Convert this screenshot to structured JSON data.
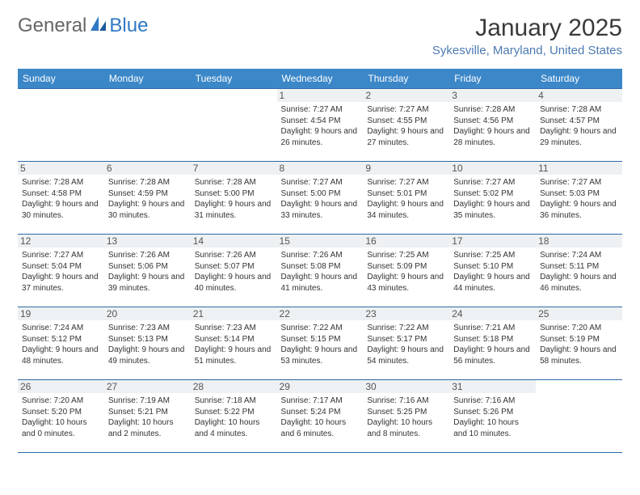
{
  "brand": {
    "general": "General",
    "blue": "Blue"
  },
  "header": {
    "month": "January 2025",
    "location": "Sykesville, Maryland, United States"
  },
  "dayNames": [
    "Sunday",
    "Monday",
    "Tuesday",
    "Wednesday",
    "Thursday",
    "Friday",
    "Saturday"
  ],
  "colors": {
    "header_bg": "#3b87c8",
    "header_text": "#ffffff",
    "accent": "#2f78c4",
    "rule": "#2d6aa8"
  },
  "weeks": [
    [
      {
        "num": "",
        "sunrise": "",
        "sunset": "",
        "daylight": ""
      },
      {
        "num": "",
        "sunrise": "",
        "sunset": "",
        "daylight": ""
      },
      {
        "num": "",
        "sunrise": "",
        "sunset": "",
        "daylight": ""
      },
      {
        "num": "1",
        "sunrise": "Sunrise: 7:27 AM",
        "sunset": "Sunset: 4:54 PM",
        "daylight": "Daylight: 9 hours and 26 minutes."
      },
      {
        "num": "2",
        "sunrise": "Sunrise: 7:27 AM",
        "sunset": "Sunset: 4:55 PM",
        "daylight": "Daylight: 9 hours and 27 minutes."
      },
      {
        "num": "3",
        "sunrise": "Sunrise: 7:28 AM",
        "sunset": "Sunset: 4:56 PM",
        "daylight": "Daylight: 9 hours and 28 minutes."
      },
      {
        "num": "4",
        "sunrise": "Sunrise: 7:28 AM",
        "sunset": "Sunset: 4:57 PM",
        "daylight": "Daylight: 9 hours and 29 minutes."
      }
    ],
    [
      {
        "num": "5",
        "sunrise": "Sunrise: 7:28 AM",
        "sunset": "Sunset: 4:58 PM",
        "daylight": "Daylight: 9 hours and 30 minutes."
      },
      {
        "num": "6",
        "sunrise": "Sunrise: 7:28 AM",
        "sunset": "Sunset: 4:59 PM",
        "daylight": "Daylight: 9 hours and 30 minutes."
      },
      {
        "num": "7",
        "sunrise": "Sunrise: 7:28 AM",
        "sunset": "Sunset: 5:00 PM",
        "daylight": "Daylight: 9 hours and 31 minutes."
      },
      {
        "num": "8",
        "sunrise": "Sunrise: 7:27 AM",
        "sunset": "Sunset: 5:00 PM",
        "daylight": "Daylight: 9 hours and 33 minutes."
      },
      {
        "num": "9",
        "sunrise": "Sunrise: 7:27 AM",
        "sunset": "Sunset: 5:01 PM",
        "daylight": "Daylight: 9 hours and 34 minutes."
      },
      {
        "num": "10",
        "sunrise": "Sunrise: 7:27 AM",
        "sunset": "Sunset: 5:02 PM",
        "daylight": "Daylight: 9 hours and 35 minutes."
      },
      {
        "num": "11",
        "sunrise": "Sunrise: 7:27 AM",
        "sunset": "Sunset: 5:03 PM",
        "daylight": "Daylight: 9 hours and 36 minutes."
      }
    ],
    [
      {
        "num": "12",
        "sunrise": "Sunrise: 7:27 AM",
        "sunset": "Sunset: 5:04 PM",
        "daylight": "Daylight: 9 hours and 37 minutes."
      },
      {
        "num": "13",
        "sunrise": "Sunrise: 7:26 AM",
        "sunset": "Sunset: 5:06 PM",
        "daylight": "Daylight: 9 hours and 39 minutes."
      },
      {
        "num": "14",
        "sunrise": "Sunrise: 7:26 AM",
        "sunset": "Sunset: 5:07 PM",
        "daylight": "Daylight: 9 hours and 40 minutes."
      },
      {
        "num": "15",
        "sunrise": "Sunrise: 7:26 AM",
        "sunset": "Sunset: 5:08 PM",
        "daylight": "Daylight: 9 hours and 41 minutes."
      },
      {
        "num": "16",
        "sunrise": "Sunrise: 7:25 AM",
        "sunset": "Sunset: 5:09 PM",
        "daylight": "Daylight: 9 hours and 43 minutes."
      },
      {
        "num": "17",
        "sunrise": "Sunrise: 7:25 AM",
        "sunset": "Sunset: 5:10 PM",
        "daylight": "Daylight: 9 hours and 44 minutes."
      },
      {
        "num": "18",
        "sunrise": "Sunrise: 7:24 AM",
        "sunset": "Sunset: 5:11 PM",
        "daylight": "Daylight: 9 hours and 46 minutes."
      }
    ],
    [
      {
        "num": "19",
        "sunrise": "Sunrise: 7:24 AM",
        "sunset": "Sunset: 5:12 PM",
        "daylight": "Daylight: 9 hours and 48 minutes."
      },
      {
        "num": "20",
        "sunrise": "Sunrise: 7:23 AM",
        "sunset": "Sunset: 5:13 PM",
        "daylight": "Daylight: 9 hours and 49 minutes."
      },
      {
        "num": "21",
        "sunrise": "Sunrise: 7:23 AM",
        "sunset": "Sunset: 5:14 PM",
        "daylight": "Daylight: 9 hours and 51 minutes."
      },
      {
        "num": "22",
        "sunrise": "Sunrise: 7:22 AM",
        "sunset": "Sunset: 5:15 PM",
        "daylight": "Daylight: 9 hours and 53 minutes."
      },
      {
        "num": "23",
        "sunrise": "Sunrise: 7:22 AM",
        "sunset": "Sunset: 5:17 PM",
        "daylight": "Daylight: 9 hours and 54 minutes."
      },
      {
        "num": "24",
        "sunrise": "Sunrise: 7:21 AM",
        "sunset": "Sunset: 5:18 PM",
        "daylight": "Daylight: 9 hours and 56 minutes."
      },
      {
        "num": "25",
        "sunrise": "Sunrise: 7:20 AM",
        "sunset": "Sunset: 5:19 PM",
        "daylight": "Daylight: 9 hours and 58 minutes."
      }
    ],
    [
      {
        "num": "26",
        "sunrise": "Sunrise: 7:20 AM",
        "sunset": "Sunset: 5:20 PM",
        "daylight": "Daylight: 10 hours and 0 minutes."
      },
      {
        "num": "27",
        "sunrise": "Sunrise: 7:19 AM",
        "sunset": "Sunset: 5:21 PM",
        "daylight": "Daylight: 10 hours and 2 minutes."
      },
      {
        "num": "28",
        "sunrise": "Sunrise: 7:18 AM",
        "sunset": "Sunset: 5:22 PM",
        "daylight": "Daylight: 10 hours and 4 minutes."
      },
      {
        "num": "29",
        "sunrise": "Sunrise: 7:17 AM",
        "sunset": "Sunset: 5:24 PM",
        "daylight": "Daylight: 10 hours and 6 minutes."
      },
      {
        "num": "30",
        "sunrise": "Sunrise: 7:16 AM",
        "sunset": "Sunset: 5:25 PM",
        "daylight": "Daylight: 10 hours and 8 minutes."
      },
      {
        "num": "31",
        "sunrise": "Sunrise: 7:16 AM",
        "sunset": "Sunset: 5:26 PM",
        "daylight": "Daylight: 10 hours and 10 minutes."
      },
      {
        "num": "",
        "sunrise": "",
        "sunset": "",
        "daylight": ""
      }
    ]
  ]
}
